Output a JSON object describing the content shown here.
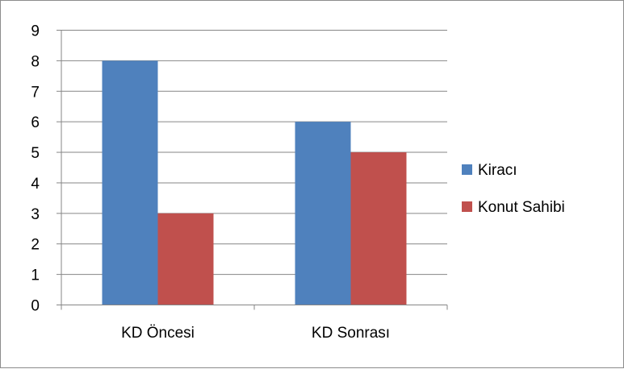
{
  "chart_data": {
    "type": "bar",
    "title": "",
    "xlabel": "",
    "ylabel": "",
    "categories": [
      "KD Öncesi",
      "KD Sonrası"
    ],
    "series": [
      {
        "name": "Kiracı",
        "values": [
          8,
          6
        ],
        "color": "#4f81bd"
      },
      {
        "name": "Konut Sahibi",
        "values": [
          3,
          5
        ],
        "color": "#c0504d"
      }
    ],
    "ylim": [
      0,
      9
    ],
    "yticks": [
      0,
      1,
      2,
      3,
      4,
      5,
      6,
      7,
      8,
      9
    ],
    "grid": true,
    "legend": "right"
  }
}
